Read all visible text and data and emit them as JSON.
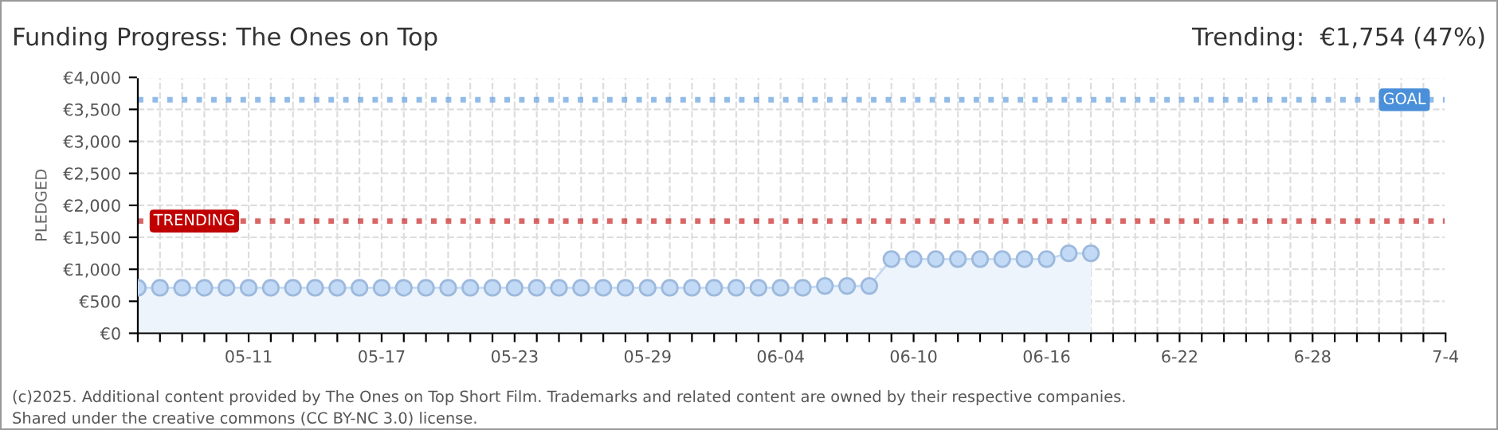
{
  "chart_data": {
    "type": "area",
    "title": "Funding Progress: The Ones on Top",
    "subtitle": "Trending:  €1,754 (47%)",
    "ylabel": "PLEDGED",
    "annotations": [
      "(c)2025. Additional content provided by The Ones on Top Short Film. Trademarks and related content are owned by their respective companies.",
      "Shared under the creative commons (CC BY-NC 3.0) license."
    ],
    "x": [
      "2025-05-06",
      "2025-05-07",
      "2025-05-08",
      "2025-05-09",
      "2025-05-10",
      "2025-05-11",
      "2025-05-12",
      "2025-05-13",
      "2025-05-14",
      "2025-05-15",
      "2025-05-16",
      "2025-05-17",
      "2025-05-18",
      "2025-05-19",
      "2025-05-20",
      "2025-05-21",
      "2025-05-22",
      "2025-05-23",
      "2025-05-24",
      "2025-05-25",
      "2025-05-26",
      "2025-05-27",
      "2025-05-28",
      "2025-05-29",
      "2025-05-30",
      "2025-05-31",
      "2025-06-01",
      "2025-06-02",
      "2025-06-03",
      "2025-06-04",
      "2025-06-05",
      "2025-06-06",
      "2025-06-07",
      "2025-06-08",
      "2025-06-09",
      "2025-06-10",
      "2025-06-11",
      "2025-06-12",
      "2025-06-13",
      "2025-06-14",
      "2025-06-15",
      "2025-06-16",
      "2025-06-17",
      "2025-06-18"
    ],
    "series": [
      {
        "color": "#c2daf5",
        "values": [
          710,
          710,
          710,
          710,
          710,
          710,
          710,
          710,
          710,
          710,
          710,
          710,
          710,
          710,
          710,
          710,
          710,
          710,
          710,
          710,
          710,
          710,
          710,
          710,
          710,
          710,
          710,
          710,
          710,
          710,
          710,
          740,
          740,
          740,
          1160,
          1160,
          1160,
          1160,
          1160,
          1160,
          1160,
          1160,
          1250,
          1250
        ]
      }
    ],
    "marker": "circle",
    "grid": true,
    "ylim": [
      0,
      4000
    ],
    "yticks": [
      {
        "value": 0,
        "label": "€0"
      },
      {
        "value": 500,
        "label": "€500"
      },
      {
        "value": 1000,
        "label": "€1,000"
      },
      {
        "value": 1500,
        "label": "€1,500"
      },
      {
        "value": 2000,
        "label": "€2,000"
      },
      {
        "value": 2500,
        "label": "€2,500"
      },
      {
        "value": 3000,
        "label": "€3,000"
      },
      {
        "value": 3500,
        "label": "€3,500"
      },
      {
        "value": 4000,
        "label": "€4,000"
      }
    ],
    "xlim": [
      "2025-05-06",
      "2025-07-04"
    ],
    "xticks": [
      {
        "value": "2025-05-06",
        "label": null
      },
      {
        "value": "2025-05-07",
        "label": null
      },
      {
        "value": "2025-05-08",
        "label": null
      },
      {
        "value": "2025-05-09",
        "label": null
      },
      {
        "value": "2025-05-10",
        "label": null
      },
      {
        "value": "2025-05-11",
        "label": "05-11"
      },
      {
        "value": "2025-05-12",
        "label": null
      },
      {
        "value": "2025-05-13",
        "label": null
      },
      {
        "value": "2025-05-14",
        "label": null
      },
      {
        "value": "2025-05-15",
        "label": null
      },
      {
        "value": "2025-05-16",
        "label": null
      },
      {
        "value": "2025-05-17",
        "label": "05-17"
      },
      {
        "value": "2025-05-18",
        "label": null
      },
      {
        "value": "2025-05-19",
        "label": null
      },
      {
        "value": "2025-05-20",
        "label": null
      },
      {
        "value": "2025-05-21",
        "label": null
      },
      {
        "value": "2025-05-22",
        "label": null
      },
      {
        "value": "2025-05-23",
        "label": "05-23"
      },
      {
        "value": "2025-05-24",
        "label": null
      },
      {
        "value": "2025-05-25",
        "label": null
      },
      {
        "value": "2025-05-26",
        "label": null
      },
      {
        "value": "2025-05-27",
        "label": null
      },
      {
        "value": "2025-05-28",
        "label": null
      },
      {
        "value": "2025-05-29",
        "label": "05-29"
      },
      {
        "value": "2025-05-30",
        "label": null
      },
      {
        "value": "2025-05-31",
        "label": null
      },
      {
        "value": "2025-06-01",
        "label": null
      },
      {
        "value": "2025-06-02",
        "label": null
      },
      {
        "value": "2025-06-03",
        "label": null
      },
      {
        "value": "2025-06-04",
        "label": "06-04"
      },
      {
        "value": "2025-06-05",
        "label": null
      },
      {
        "value": "2025-06-06",
        "label": null
      },
      {
        "value": "2025-06-07",
        "label": null
      },
      {
        "value": "2025-06-08",
        "label": null
      },
      {
        "value": "2025-06-09",
        "label": null
      },
      {
        "value": "2025-06-10",
        "label": "06-10"
      },
      {
        "value": "2025-06-11",
        "label": null
      },
      {
        "value": "2025-06-12",
        "label": null
      },
      {
        "value": "2025-06-13",
        "label": null
      },
      {
        "value": "2025-06-14",
        "label": null
      },
      {
        "value": "2025-06-15",
        "label": null
      },
      {
        "value": "2025-06-16",
        "label": "06-16"
      },
      {
        "value": "2025-06-17",
        "label": null
      },
      {
        "value": "2025-06-18",
        "label": null
      },
      {
        "value": "2025-06-19",
        "label": null
      },
      {
        "value": "2025-06-20",
        "label": null
      },
      {
        "value": "2025-06-21",
        "label": null
      },
      {
        "value": "2025-06-22",
        "label": "6-22"
      },
      {
        "value": "2025-06-23",
        "label": null
      },
      {
        "value": "2025-06-24",
        "label": null
      },
      {
        "value": "2025-06-25",
        "label": null
      },
      {
        "value": "2025-06-26",
        "label": null
      },
      {
        "value": "2025-06-27",
        "label": null
      },
      {
        "value": "2025-06-28",
        "label": "6-28"
      },
      {
        "value": "2025-06-29",
        "label": null
      },
      {
        "value": "2025-06-30",
        "label": null
      },
      {
        "value": "2025-07-01",
        "label": null
      },
      {
        "value": "2025-07-02",
        "label": null
      },
      {
        "value": "2025-07-03",
        "label": null
      },
      {
        "value": "2025-07-04",
        "label": "7-4"
      }
    ],
    "ref_lines": [
      {
        "axis": "y",
        "value": 3650,
        "label": "GOAL",
        "color": "#4a8fd9",
        "line_style": "dotted"
      },
      {
        "axis": "y",
        "value": 1754,
        "label": "TRENDING",
        "color": "#c00000",
        "line_style": "dotted"
      }
    ]
  }
}
